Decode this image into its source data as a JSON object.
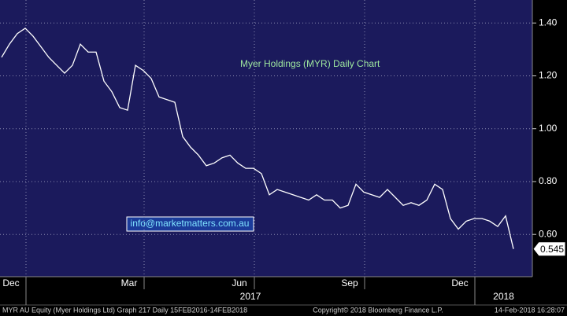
{
  "chart_data": {
    "type": "line",
    "annotation": "Myer Holdings (MYR) Daily Chart",
    "watermark": "info@marketmatters.com.au",
    "categories": [
      "Dec",
      null,
      null,
      null,
      null,
      null,
      null,
      null,
      null,
      null,
      null,
      null,
      null,
      null,
      null,
      "Mar",
      null,
      null,
      null,
      null,
      null,
      null,
      null,
      null,
      null,
      null,
      null,
      null,
      null,
      "Jun",
      null,
      null,
      null,
      null,
      null,
      null,
      null,
      null,
      null,
      null,
      null,
      null,
      null,
      "Sep",
      null,
      null,
      null,
      null,
      null,
      null,
      null,
      null,
      null,
      null,
      null,
      null,
      null,
      "Dec",
      null,
      null,
      null,
      null,
      null,
      null,
      null,
      null
    ],
    "x_groups": [
      "2017",
      "2018"
    ],
    "series": [
      {
        "name": "MYR AU Equity",
        "color": "#ffffff",
        "values": [
          1.27,
          1.32,
          1.36,
          1.38,
          1.35,
          1.31,
          1.27,
          1.24,
          1.21,
          1.24,
          1.32,
          1.29,
          1.29,
          1.18,
          1.14,
          1.08,
          1.07,
          1.24,
          1.22,
          1.19,
          1.12,
          1.11,
          1.1,
          0.97,
          0.93,
          0.9,
          0.86,
          0.87,
          0.89,
          0.9,
          0.87,
          0.85,
          0.85,
          0.83,
          0.75,
          0.77,
          0.76,
          0.75,
          0.74,
          0.73,
          0.75,
          0.73,
          0.73,
          0.7,
          0.71,
          0.79,
          0.76,
          0.75,
          0.74,
          0.77,
          0.74,
          0.71,
          0.72,
          0.71,
          0.73,
          0.79,
          0.77,
          0.66,
          0.62,
          0.65,
          0.66,
          0.66,
          0.65,
          0.63,
          0.67,
          0.545
        ]
      }
    ],
    "ylim": [
      0.44,
      1.487
    ],
    "yticks": [
      {
        "value": 0.6,
        "label": "0.60"
      },
      {
        "value": 0.8,
        "label": "0.80"
      },
      {
        "value": 1.0,
        "label": "1.00"
      },
      {
        "value": 1.2,
        "label": "1.20"
      },
      {
        "value": 1.4,
        "label": "1.40"
      }
    ],
    "grid": true,
    "footer": {
      "left": "MYR AU Equity (Myer Holdings Ltd) Graph 217  Daily 15FEB2016-14FEB2018",
      "center": "Copyright© 2018 Bloomberg Finance L.P.",
      "right": "14-Feb-2018 16:28:07"
    }
  }
}
